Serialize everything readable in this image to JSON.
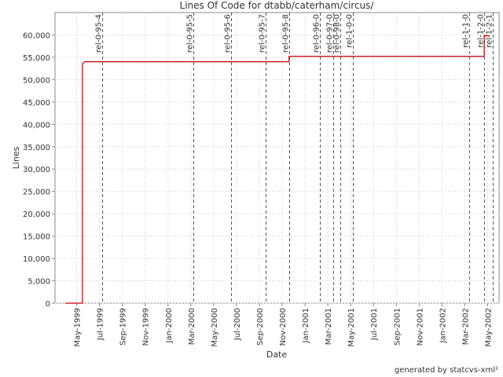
{
  "chart_data": {
    "type": "line",
    "title": "Lines Of Code for dtabb/caterham/circus/",
    "xlabel": "Date",
    "ylabel": "Lines",
    "footer": "generated by statcvs-xml²",
    "series": [
      {
        "name": "Lines",
        "color": "#cc0000",
        "x": [
          3.0,
          4.5,
          4.5,
          4.7,
          22.6,
          22.6,
          39.7,
          39.7,
          40.1
        ],
        "values": [
          0,
          0,
          53500,
          54000,
          54000,
          55200,
          55200,
          59800,
          59800
        ]
      }
    ],
    "xlim": [
      2.1,
      41.0
    ],
    "xticks": [
      {
        "value": 4,
        "label": "May-1999"
      },
      {
        "value": 6,
        "label": "Jul-1999"
      },
      {
        "value": 8,
        "label": "Sep-1999"
      },
      {
        "value": 10,
        "label": "Nov-1999"
      },
      {
        "value": 12,
        "label": "Jan-2000"
      },
      {
        "value": 14,
        "label": "Mar-2000"
      },
      {
        "value": 16,
        "label": "May-2000"
      },
      {
        "value": 18,
        "label": "Jul-2000"
      },
      {
        "value": 20,
        "label": "Sep-2000"
      },
      {
        "value": 22,
        "label": "Nov-2000"
      },
      {
        "value": 24,
        "label": "Jan-2001"
      },
      {
        "value": 26,
        "label": "Mar-2001"
      },
      {
        "value": 28,
        "label": "May-2001"
      },
      {
        "value": 30,
        "label": "Jul-2001"
      },
      {
        "value": 32,
        "label": "Sep-2001"
      },
      {
        "value": 34,
        "label": "Nov-2001"
      },
      {
        "value": 36,
        "label": "Jan-2002"
      },
      {
        "value": 38,
        "label": "Mar-2002"
      },
      {
        "value": 40,
        "label": "May-2002"
      }
    ],
    "ylim": [
      0,
      65000
    ],
    "yticks": [
      0,
      {
        "value": 5000,
        "label": "5,000"
      },
      {
        "value": 10000,
        "label": "10,000"
      },
      {
        "value": 15000,
        "label": "15,000"
      },
      {
        "value": 20000,
        "label": "20,000"
      },
      {
        "value": 25000,
        "label": "25,000"
      },
      {
        "value": 30000,
        "label": "30,000"
      },
      {
        "value": 35000,
        "label": "35,000"
      },
      {
        "value": 40000,
        "label": "40,000"
      },
      {
        "value": 45000,
        "label": "45,000"
      },
      {
        "value": 50000,
        "label": "50,000"
      },
      {
        "value": 55000,
        "label": "55,000"
      },
      {
        "value": 60000,
        "label": "60,000"
      }
    ],
    "grid": true,
    "markers": [
      {
        "label": "rel-0-95-4",
        "x": 6.27
      },
      {
        "label": "rel-0-95-5",
        "x": 14.25
      },
      {
        "label": "rel-0-95-6",
        "x": 17.56
      },
      {
        "label": "rel-0-95-7",
        "x": 20.59
      },
      {
        "label": "rel-0-95-8",
        "x": 22.65
      },
      {
        "label": "rel-0-96-0",
        "x": 25.34
      },
      {
        "label": "rel-0-97-0",
        "x": 26.5
      },
      {
        "label": "rel-0-98-0",
        "x": 27.12
      },
      {
        "label": "rel-1-0-0",
        "x": 28.23
      },
      {
        "label": "rel-1-1-0",
        "x": 38.41
      },
      {
        "label": "rel-1-2-0",
        "x": 39.72
      },
      {
        "label": "rel-1-2-1",
        "x": 40.48
      }
    ]
  }
}
